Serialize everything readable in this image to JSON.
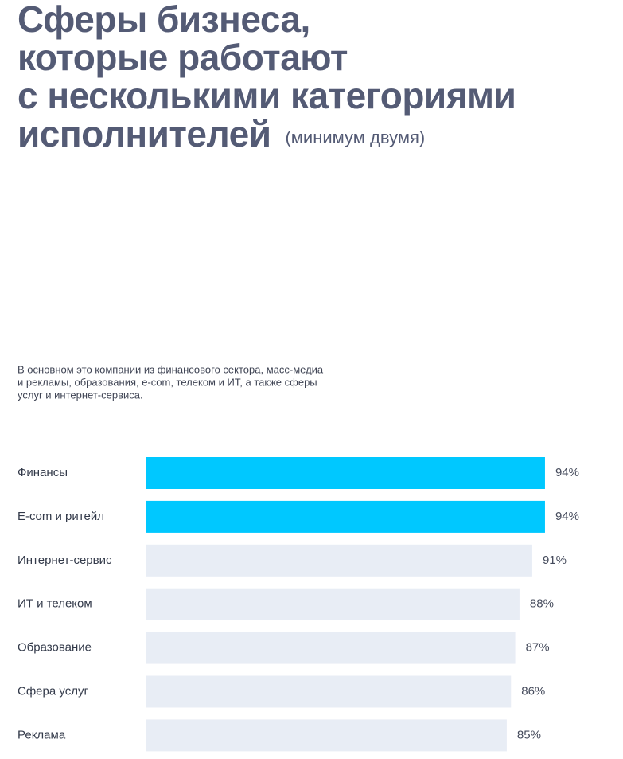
{
  "chart_data": {
    "type": "bar",
    "title": [
      "Сферы бизнеса,",
      "которые работают",
      "с несколькими категориями",
      "исполнителей"
    ],
    "subtitle": "(минимум двумя)",
    "description": [
      "В основном это компании из финансового сектора, масс-медиа",
      "и рекламы, образования, e-com, телеком и ИТ, а также сферы",
      "услуг и интернет-сервиса."
    ],
    "categories": [
      "Финансы",
      "E-com и ритейл",
      "Интернет-сервис",
      "ИТ и телеком",
      "Образование",
      "Сфера услуг",
      "Реклама"
    ],
    "values": [
      94,
      94,
      91,
      88,
      87,
      86,
      85
    ],
    "value_labels": [
      "94%",
      "94%",
      "91%",
      "88%",
      "87%",
      "86%",
      "85%"
    ],
    "colors": [
      "#00c8ff",
      "#00c8ff",
      "#e8edf5",
      "#e8edf5",
      "#e8edf5",
      "#e8edf5",
      "#e8edf5"
    ],
    "xlim": [
      0,
      100
    ]
  }
}
